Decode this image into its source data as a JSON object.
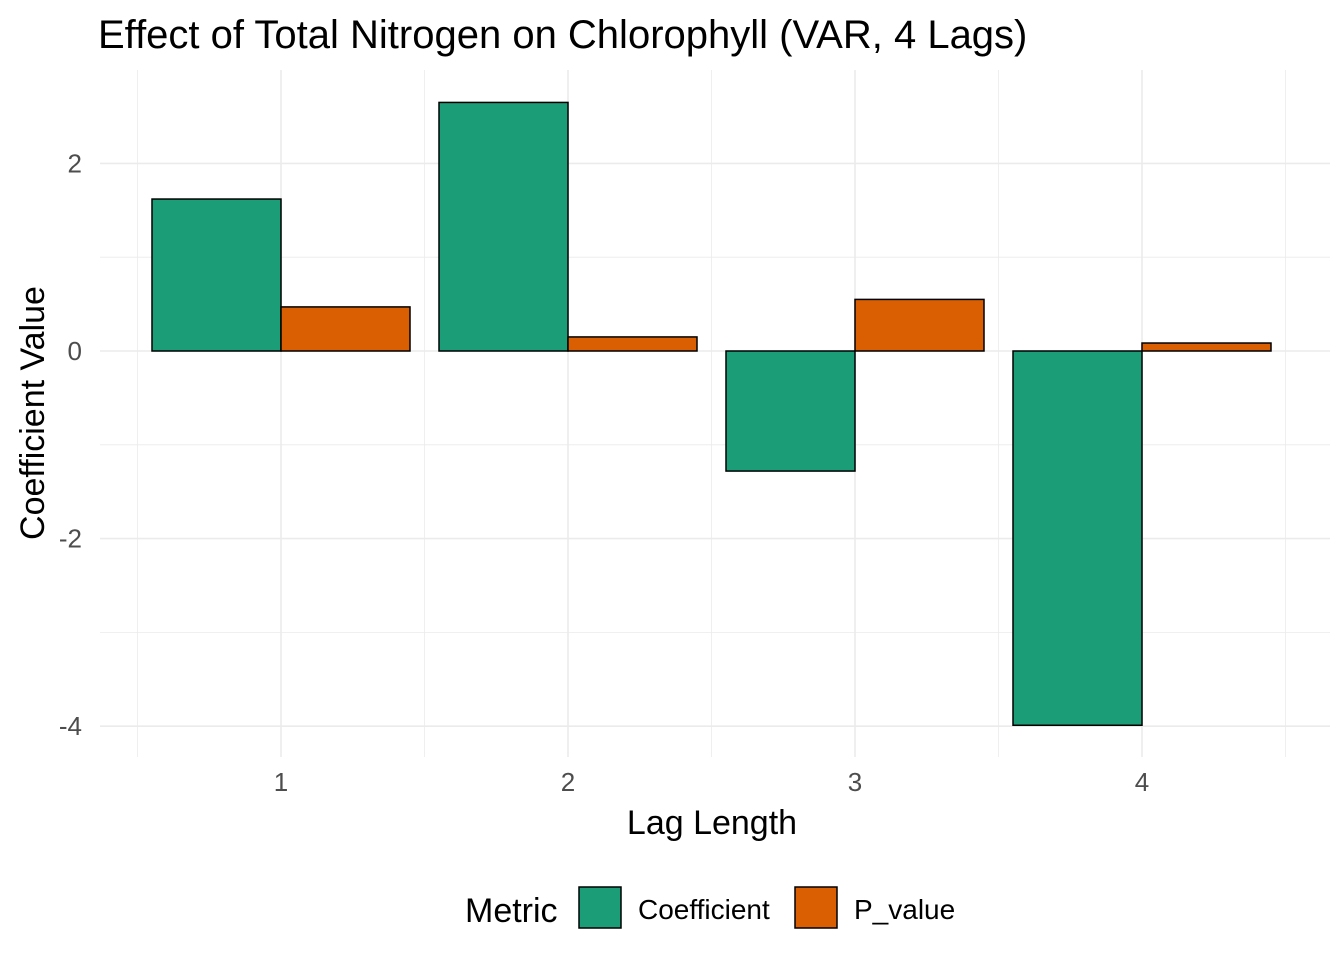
{
  "chart_data": {
    "type": "bar",
    "title": "Effect of Total Nitrogen on Chlorophyll (VAR, 4 Lags)",
    "xlabel": "Lag Length",
    "ylabel": "Coefficient Value",
    "categories": [
      "1",
      "2",
      "3",
      "4"
    ],
    "series": [
      {
        "name": "Coefficient",
        "color": "#1B9E77",
        "values": [
          1.62,
          2.65,
          -1.28,
          -3.99
        ]
      },
      {
        "name": "P_value",
        "color": "#D95F02",
        "values": [
          0.47,
          0.15,
          0.55,
          0.085
        ]
      }
    ],
    "yticks": [
      2,
      0,
      -2,
      -4
    ],
    "ytick_labels": [
      "2",
      "0",
      "-2",
      "-4"
    ],
    "ylim": [
      -4.33,
      3.0
    ],
    "grid": true,
    "legend": {
      "title": "Metric",
      "position": "bottom"
    }
  }
}
